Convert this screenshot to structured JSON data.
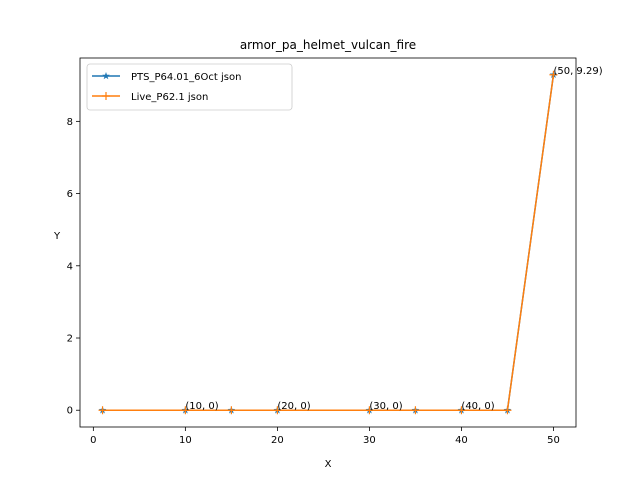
{
  "chart_data": {
    "type": "line",
    "title": "armor_pa_helmet_vulcan_fire",
    "xlabel": "X",
    "ylabel": "Y",
    "xlim": [
      -1.45,
      52.45
    ],
    "ylim": [
      -0.4645,
      9.7545
    ],
    "xticks": [
      0,
      10,
      20,
      30,
      40,
      50
    ],
    "yticks": [
      0,
      2,
      4,
      6,
      8
    ],
    "x": [
      1,
      10,
      15,
      20,
      30,
      35,
      40,
      45,
      50
    ],
    "series": [
      {
        "name": "PTS_P64.01_6Oct json",
        "color": "#1f77b4",
        "marker": "star",
        "values": [
          0,
          0,
          0,
          0,
          0,
          0,
          0,
          0,
          9.29
        ]
      },
      {
        "name": "Live_P62.1 json",
        "color": "#ff7f0e",
        "marker": "plus",
        "values": [
          0,
          0,
          0,
          0,
          0,
          0,
          0,
          0,
          9.29
        ]
      }
    ],
    "annotations": [
      {
        "x": 10,
        "y": 0,
        "text": "(10, 0)"
      },
      {
        "x": 20,
        "y": 0,
        "text": "(20, 0)"
      },
      {
        "x": 30,
        "y": 0,
        "text": "(30, 0)"
      },
      {
        "x": 40,
        "y": 0,
        "text": "(40, 0)"
      },
      {
        "x": 50,
        "y": 9.29,
        "text": "(50, 9.29)"
      }
    ],
    "legend": "top-left",
    "grid": false
  }
}
